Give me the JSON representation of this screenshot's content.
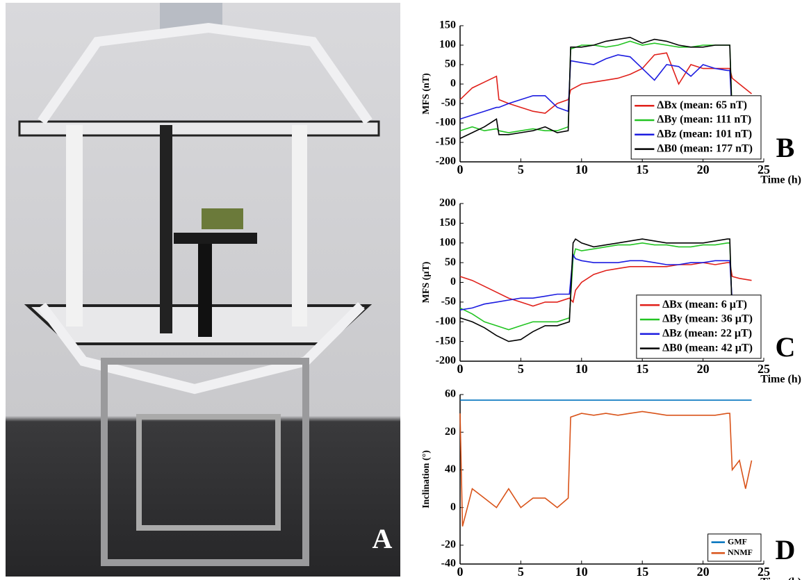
{
  "figure_label_a": "A",
  "chart_data": [
    {
      "type": "line",
      "panel_label": "B",
      "ylabel": "MFS (nT)",
      "xlabel": "Time (h)",
      "x": [
        0,
        1,
        2,
        3,
        3.2,
        4,
        5,
        6,
        7,
        8,
        8.9,
        9.1,
        10,
        11,
        12,
        13,
        14,
        15,
        16,
        17,
        18,
        19,
        20,
        21,
        22,
        22.2,
        22.4,
        23,
        24
      ],
      "xlim": [
        0,
        25
      ],
      "xticks": [
        0,
        5,
        10,
        15,
        20,
        25
      ],
      "ylim": [
        -200,
        150
      ],
      "yticks": [
        -200,
        -150,
        -100,
        -50,
        0,
        50,
        100,
        150
      ],
      "legend": "lower right",
      "series": [
        {
          "name": "ΔBx (mean:  65 nT)",
          "color": "#e0201a",
          "values": [
            -40,
            -10,
            5,
            20,
            -40,
            -50,
            -60,
            -70,
            -75,
            -50,
            -40,
            -15,
            0,
            5,
            10,
            15,
            25,
            40,
            75,
            80,
            0,
            50,
            40,
            40,
            40,
            40,
            15,
            0,
            -25
          ]
        },
        {
          "name": "ΔBy (mean: 111 nT)",
          "color": "#22c422",
          "values": [
            -120,
            -110,
            -120,
            -115,
            -120,
            -125,
            -120,
            -115,
            -120,
            -120,
            -110,
            90,
            100,
            100,
            95,
            100,
            110,
            100,
            105,
            100,
            95,
            95,
            100,
            100,
            100,
            100,
            -80,
            -95,
            -100
          ]
        },
        {
          "name": "ΔBz (mean: 101 nT)",
          "color": "#1c1ce0",
          "values": [
            -90,
            -80,
            -70,
            -60,
            -60,
            -50,
            -40,
            -30,
            -30,
            -60,
            -70,
            60,
            55,
            50,
            65,
            75,
            70,
            40,
            10,
            50,
            45,
            20,
            50,
            40,
            35,
            35,
            -80,
            -95,
            -100
          ]
        },
        {
          "name": "ΔB0 (mean: 177 nT)",
          "color": "#000000",
          "values": [
            -140,
            -125,
            -110,
            -90,
            -130,
            -130,
            -125,
            -120,
            -110,
            -125,
            -120,
            95,
            95,
            100,
            110,
            115,
            120,
            105,
            115,
            110,
            100,
            95,
            95,
            100,
            100,
            100,
            -100,
            -110,
            -130
          ]
        }
      ]
    },
    {
      "type": "line",
      "panel_label": "C",
      "ylabel": "MFS (µT)",
      "xlabel": "Time (h)",
      "x": [
        0,
        1,
        2,
        3,
        4,
        5,
        6,
        7,
        8,
        9,
        9.3,
        9.5,
        10,
        11,
        12,
        13,
        14,
        15,
        16,
        17,
        18,
        19,
        20,
        21,
        22,
        22.2,
        22.4,
        23,
        24
      ],
      "xlim": [
        0,
        25
      ],
      "xticks": [
        0,
        5,
        10,
        15,
        20,
        25
      ],
      "ylim": [
        -200,
        200
      ],
      "yticks": [
        -200,
        -150,
        -100,
        -50,
        0,
        50,
        100,
        150,
        200
      ],
      "legend": "lower right",
      "series": [
        {
          "name": "ΔBx (mean:  6 µT)",
          "color": "#e0201a",
          "values": [
            15,
            5,
            -10,
            -25,
            -40,
            -50,
            -60,
            -50,
            -50,
            -40,
            -50,
            -20,
            0,
            20,
            30,
            35,
            40,
            40,
            40,
            40,
            45,
            45,
            50,
            45,
            50,
            50,
            15,
            10,
            5
          ]
        },
        {
          "name": "ΔBy (mean: 36 µT)",
          "color": "#22c422",
          "values": [
            -65,
            -80,
            -100,
            -110,
            -120,
            -110,
            -100,
            -100,
            -100,
            -90,
            60,
            85,
            80,
            85,
            90,
            95,
            95,
            100,
            95,
            95,
            90,
            90,
            95,
            95,
            100,
            100,
            -80,
            -90,
            -95
          ]
        },
        {
          "name": "ΔBz (mean: 22 µT)",
          "color": "#1c1ce0",
          "values": [
            -70,
            -65,
            -55,
            -50,
            -45,
            -40,
            -40,
            -35,
            -30,
            -30,
            70,
            60,
            55,
            50,
            50,
            50,
            55,
            55,
            50,
            45,
            45,
            50,
            50,
            55,
            55,
            55,
            -50,
            -60,
            -60
          ]
        },
        {
          "name": "ΔB0 (mean: 42 µT)",
          "color": "#000000",
          "values": [
            -90,
            -100,
            -115,
            -135,
            -150,
            -145,
            -125,
            -110,
            -110,
            -100,
            100,
            110,
            100,
            90,
            95,
            100,
            105,
            110,
            105,
            100,
            100,
            100,
            100,
            105,
            110,
            110,
            -90,
            -100,
            -110
          ]
        }
      ]
    },
    {
      "type": "line",
      "panel_label": "D",
      "ylabel": "Inclination (°)",
      "xlabel": "Time (h)",
      "x": [
        0,
        0.2,
        1,
        2,
        3,
        4,
        5,
        6,
        7,
        8,
        8.9,
        9.1,
        10,
        11,
        12,
        13,
        14,
        15,
        16,
        17,
        18,
        19,
        20,
        21,
        22,
        22.2,
        22.4,
        23,
        23.5,
        24
      ],
      "xlim": [
        0,
        25
      ],
      "xticks": [
        0,
        5,
        10,
        15,
        20,
        25
      ],
      "ylim": [
        -30,
        60
      ],
      "yticks": [
        {
          "value": -30,
          "label": "-40"
        },
        -20,
        0,
        {
          "value": 20,
          "label": "40"
        },
        {
          "value": 40,
          "label": "20"
        },
        60
      ],
      "legend": "lower right",
      "series": [
        {
          "name": "GMF",
          "color": "#0072bd",
          "values": [
            57,
            57,
            57,
            57,
            57,
            57,
            57,
            57,
            57,
            57,
            57,
            57,
            57,
            57,
            57,
            57,
            57,
            57,
            57,
            57,
            57,
            57,
            57,
            57,
            57,
            57,
            57,
            57,
            57,
            57
          ]
        },
        {
          "name": "NNMF",
          "color": "#d95319",
          "values": [
            50,
            -10,
            10,
            5,
            0,
            10,
            0,
            5,
            5,
            0,
            5,
            48,
            50,
            49,
            50,
            49,
            50,
            51,
            50,
            49,
            49,
            49,
            49,
            49,
            50,
            50,
            20,
            25,
            10,
            25
          ]
        }
      ]
    }
  ]
}
